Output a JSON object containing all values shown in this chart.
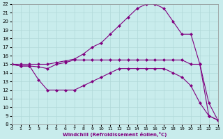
{
  "xlabel": "Windchill (Refroidissement éolien,°C)",
  "bg_color": "#c8ecec",
  "grid_color": "#b0d8d8",
  "line_color": "#800080",
  "xlim": [
    0,
    23
  ],
  "ylim": [
    8,
    22
  ],
  "xticks": [
    0,
    1,
    2,
    3,
    4,
    5,
    6,
    7,
    8,
    9,
    10,
    11,
    12,
    13,
    14,
    15,
    16,
    17,
    18,
    19,
    20,
    21,
    22,
    23
  ],
  "yticks": [
    8,
    9,
    10,
    11,
    12,
    13,
    14,
    15,
    16,
    17,
    18,
    19,
    20,
    21,
    22
  ],
  "curve1_x": [
    0,
    1,
    2,
    3,
    4,
    5,
    6,
    7,
    8,
    9,
    10,
    11,
    12,
    13,
    14,
    15,
    16,
    17,
    18,
    19,
    20,
    21,
    22,
    23
  ],
  "curve1_y": [
    15.0,
    15.0,
    15.0,
    15.0,
    15.0,
    15.2,
    15.4,
    15.6,
    16.2,
    17.0,
    17.5,
    18.5,
    19.5,
    20.5,
    21.5,
    22.0,
    22.0,
    21.5,
    20.0,
    18.5,
    18.5,
    15.0,
    10.5,
    8.5
  ],
  "curve2_x": [
    0,
    1,
    2,
    3,
    4,
    5,
    6,
    7,
    8,
    9,
    10,
    11,
    12,
    13,
    14,
    15,
    16,
    17,
    18,
    19,
    20,
    21,
    22,
    23
  ],
  "curve2_y": [
    15.0,
    14.8,
    14.8,
    14.7,
    14.5,
    15.0,
    15.2,
    15.5,
    15.5,
    15.5,
    15.5,
    15.5,
    15.5,
    15.5,
    15.5,
    15.5,
    15.5,
    15.5,
    15.5,
    15.5,
    15.0,
    15.0,
    9.0,
    8.5
  ],
  "curve3_x": [
    0,
    1,
    2,
    3,
    4,
    5,
    6,
    7,
    8,
    9,
    10,
    11,
    12,
    13,
    14,
    15,
    16,
    17,
    18,
    19,
    20,
    21,
    22,
    23
  ],
  "curve3_y": [
    15.0,
    14.8,
    14.8,
    13.2,
    12.0,
    12.0,
    12.0,
    12.0,
    12.5,
    13.0,
    13.5,
    14.0,
    14.5,
    14.5,
    14.5,
    14.5,
    14.5,
    14.5,
    14.0,
    13.5,
    12.5,
    10.5,
    9.0,
    8.5
  ],
  "marker": "D",
  "markersize": 2.5
}
